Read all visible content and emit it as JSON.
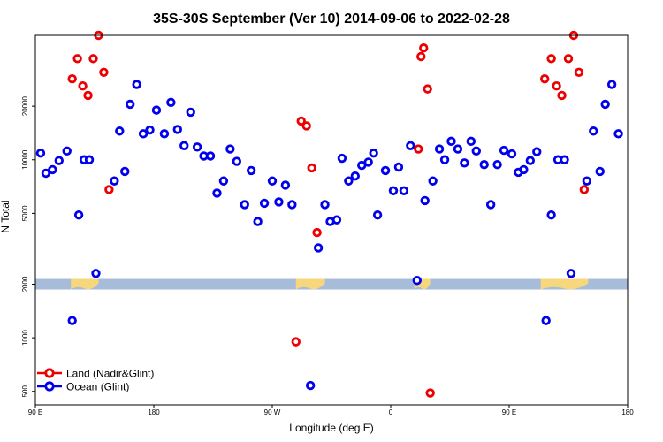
{
  "chart_data": {
    "type": "scatter",
    "title": "35S-30S September (Ver 10)   2014-09-06 to 2022-02-28",
    "xlabel": "Longitude (deg E)",
    "ylabel": "N Total",
    "x_axis": {
      "range_deg": [
        90,
        540
      ],
      "ticks": [
        {
          "value": 90,
          "label": "90 E"
        },
        {
          "value": 180,
          "label": "180"
        },
        {
          "value": 270,
          "label": "90 W"
        },
        {
          "value": 360,
          "label": "0"
        },
        {
          "value": 450,
          "label": "90 E"
        },
        {
          "value": 540,
          "label": "180"
        }
      ]
    },
    "y_axis": {
      "scale": "log",
      "range": [
        420,
        50000
      ],
      "ticks": [
        500,
        1000,
        2000,
        5000,
        10000,
        20000
      ]
    },
    "land_band": {
      "value": 2000,
      "ocean_color": "#a7bcd9",
      "land_color": "#f6d77c",
      "land_segments_deg": [
        [
          117,
          138
        ],
        [
          288,
          310
        ],
        [
          378,
          390
        ],
        [
          474,
          510
        ]
      ]
    },
    "series": [
      {
        "name": "Land (Nadir&Glint)",
        "color": "#ee0000",
        "points": [
          [
            118,
            28500
          ],
          [
            122,
            37000
          ],
          [
            126,
            26000
          ],
          [
            130,
            23000
          ],
          [
            134,
            37000
          ],
          [
            138,
            50000
          ],
          [
            142,
            31000
          ],
          [
            146,
            6800
          ],
          [
            288,
            950
          ],
          [
            292,
            16500
          ],
          [
            296,
            15500
          ],
          [
            300,
            9000
          ],
          [
            304,
            3900
          ],
          [
            381,
            11500
          ],
          [
            383,
            38000
          ],
          [
            385,
            42500
          ],
          [
            388,
            25000
          ],
          [
            390,
            490
          ],
          [
            477,
            28500
          ],
          [
            482,
            37000
          ],
          [
            486,
            26000
          ],
          [
            490,
            23000
          ],
          [
            495,
            37000
          ],
          [
            499,
            50000
          ],
          [
            503,
            31000
          ],
          [
            507,
            6800
          ]
        ]
      },
      {
        "name": "Ocean (Glint)",
        "color": "#0000ee",
        "points": [
          [
            94,
            10900
          ],
          [
            98,
            8400
          ],
          [
            103,
            8800
          ],
          [
            108,
            9900
          ],
          [
            114,
            11200
          ],
          [
            118,
            1250
          ],
          [
            123,
            4900
          ],
          [
            127,
            10000
          ],
          [
            131,
            10000
          ],
          [
            136,
            2300
          ],
          [
            150,
            7600
          ],
          [
            154,
            14500
          ],
          [
            158,
            8600
          ],
          [
            162,
            20500
          ],
          [
            167,
            26500
          ],
          [
            172,
            14000
          ],
          [
            177,
            14700
          ],
          [
            182,
            19000
          ],
          [
            188,
            14000
          ],
          [
            193,
            21000
          ],
          [
            198,
            14800
          ],
          [
            203,
            12000
          ],
          [
            208,
            18500
          ],
          [
            213,
            11800
          ],
          [
            218,
            10500
          ],
          [
            223,
            10500
          ],
          [
            228,
            6500
          ],
          [
            233,
            7600
          ],
          [
            238,
            11500
          ],
          [
            243,
            9800
          ],
          [
            249,
            5600
          ],
          [
            254,
            8700
          ],
          [
            259,
            4500
          ],
          [
            264,
            5700
          ],
          [
            270,
            7600
          ],
          [
            275,
            5800
          ],
          [
            280,
            7200
          ],
          [
            285,
            5600
          ],
          [
            299,
            540
          ],
          [
            305,
            3200
          ],
          [
            310,
            5600
          ],
          [
            314,
            4500
          ],
          [
            319,
            4600
          ],
          [
            323,
            10200
          ],
          [
            328,
            7600
          ],
          [
            333,
            8100
          ],
          [
            338,
            9300
          ],
          [
            343,
            9700
          ],
          [
            347,
            10900
          ],
          [
            350,
            4900
          ],
          [
            356,
            8700
          ],
          [
            362,
            6700
          ],
          [
            366,
            9100
          ],
          [
            370,
            6700
          ],
          [
            375,
            12000
          ],
          [
            380,
            2100
          ],
          [
            386,
            5900
          ],
          [
            392,
            7600
          ],
          [
            397,
            11500
          ],
          [
            401,
            10000
          ],
          [
            406,
            12700
          ],
          [
            411,
            11500
          ],
          [
            416,
            9600
          ],
          [
            421,
            12700
          ],
          [
            425,
            11200
          ],
          [
            431,
            9400
          ],
          [
            436,
            5600
          ],
          [
            441,
            9400
          ],
          [
            446,
            11300
          ],
          [
            452,
            10800
          ],
          [
            457,
            8500
          ],
          [
            461,
            8800
          ],
          [
            466,
            9900
          ],
          [
            471,
            11100
          ],
          [
            478,
            1250
          ],
          [
            482,
            4900
          ],
          [
            487,
            10000
          ],
          [
            492,
            10000
          ],
          [
            497,
            2300
          ],
          [
            509,
            7600
          ],
          [
            514,
            14500
          ],
          [
            519,
            8600
          ],
          [
            523,
            20500
          ],
          [
            528,
            26500
          ],
          [
            533,
            14000
          ]
        ]
      }
    ],
    "legend": {
      "position": "bottom-left",
      "entries": [
        "Land (Nadir&Glint)",
        "Ocean (Glint)"
      ]
    }
  }
}
